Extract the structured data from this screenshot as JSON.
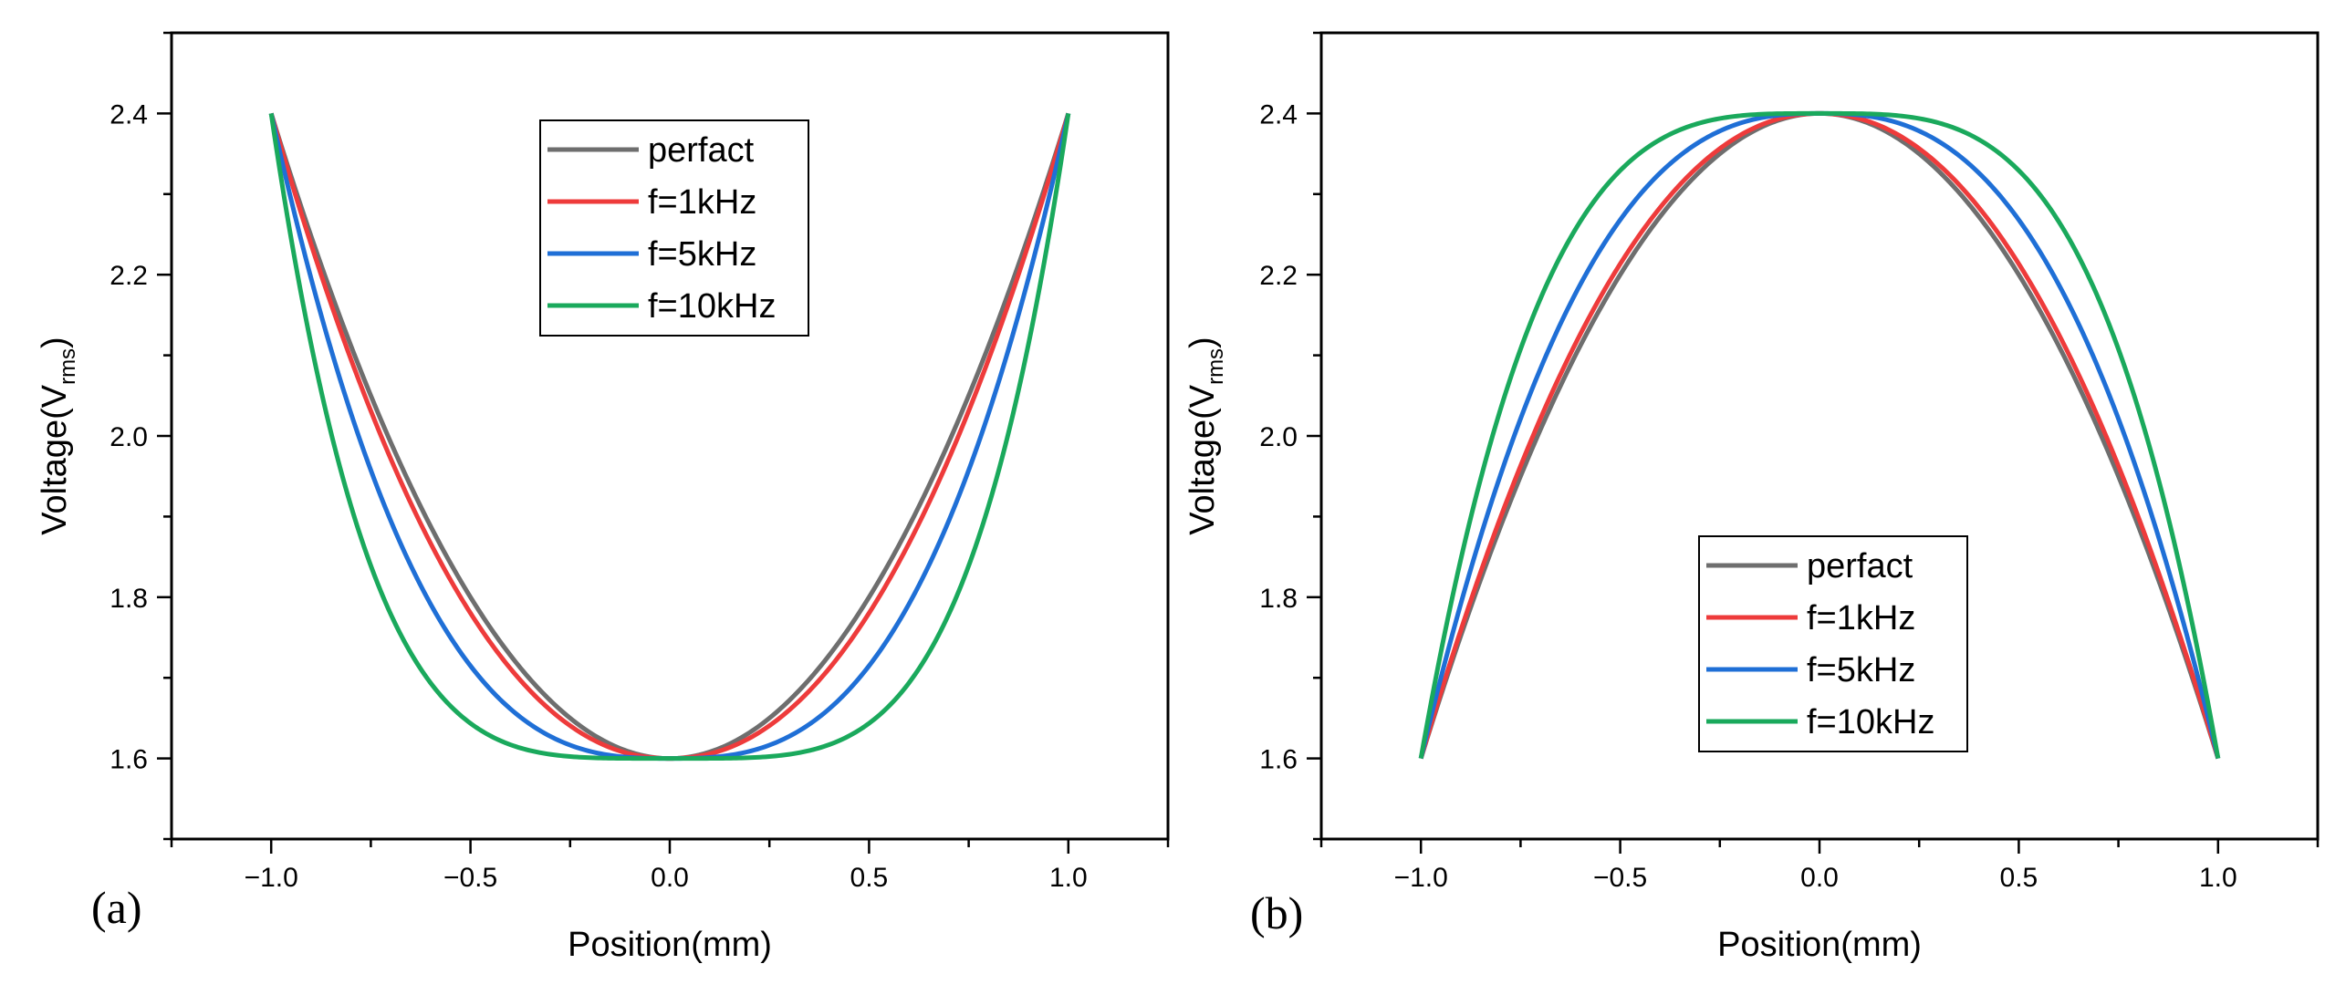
{
  "chart_data": [
    {
      "type": "line",
      "panel_label": "(a)",
      "xlabel": "Position(mm)",
      "ylabel_main": "Voltage(V",
      "ylabel_sub": "rms",
      "ylabel_close": ")",
      "xlim": [
        -1.25,
        1.25
      ],
      "ylim": [
        1.5,
        2.5
      ],
      "xticks": [
        -1.0,
        -0.5,
        0.0,
        0.5,
        1.0
      ],
      "xtick_labels": [
        "−1.0",
        "−0.5",
        "0.0",
        "0.5",
        "1.0"
      ],
      "yticks": [
        1.6,
        1.8,
        2.0,
        2.2,
        2.4
      ],
      "ytick_labels": [
        "1.6",
        "1.8",
        "2.0",
        "2.2",
        "2.4"
      ],
      "legend_position": "top-center",
      "shape": "valley",
      "series": [
        {
          "name": "perfact",
          "color": "#6e6e6e",
          "exponent": 2
        },
        {
          "name": "f=1kHz",
          "color": "#ee3b3b",
          "exponent": 2.15
        },
        {
          "name": "f=5kHz",
          "color": "#1f6fd6",
          "exponent": 2.8
        },
        {
          "name": "f=10kHz",
          "color": "#1aa95c",
          "exponent": 4.2
        }
      ]
    },
    {
      "type": "line",
      "panel_label": "(b)",
      "xlabel": "Position(mm)",
      "ylabel_main": "Voltage(V",
      "ylabel_sub": "rms",
      "ylabel_close": ")",
      "xlim": [
        -1.25,
        1.25
      ],
      "ylim": [
        1.5,
        2.5
      ],
      "xticks": [
        -1.0,
        -0.5,
        0.0,
        0.5,
        1.0
      ],
      "xtick_labels": [
        "−1.0",
        "−0.5",
        "0.0",
        "0.5",
        "1.0"
      ],
      "yticks": [
        1.6,
        1.8,
        2.0,
        2.2,
        2.4
      ],
      "ytick_labels": [
        "1.6",
        "1.8",
        "2.0",
        "2.2",
        "2.4"
      ],
      "legend_position": "bottom-right",
      "shape": "peak",
      "series": [
        {
          "name": "perfact",
          "color": "#6e6e6e",
          "exponent": 2
        },
        {
          "name": "f=1kHz",
          "color": "#ee3b3b",
          "exponent": 2.1
        },
        {
          "name": "f=5kHz",
          "color": "#1f6fd6",
          "exponent": 2.6
        },
        {
          "name": "f=10kHz",
          "color": "#1aa95c",
          "exponent": 3.5
        }
      ]
    }
  ]
}
